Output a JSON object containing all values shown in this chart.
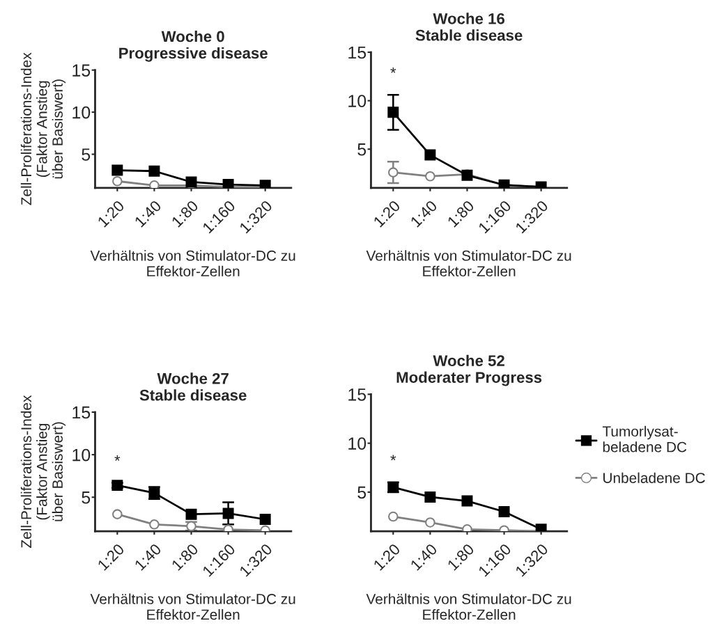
{
  "chart_data": [
    {
      "type": "line",
      "title": "Woche 0\nProgressive disease",
      "xlabel": "Verhältnis von Stimulator-DC zu\nEffektor-Zellen",
      "ylabel": "Zell-Proliferations-Index\n(Faktor Anstieg\nüber Basiswert)",
      "categories": [
        "1:20",
        "1:40",
        "1:80",
        "1:160",
        "1:320"
      ],
      "ylim": [
        1,
        15
      ],
      "yticks": [
        5,
        10,
        15
      ],
      "grid": false,
      "legend": false,
      "series": [
        {
          "color": "#000000",
          "marker": "square",
          "values": [
            3.1,
            3.0,
            1.7,
            1.4,
            1.3
          ]
        },
        {
          "color": "#808080",
          "marker": "circle",
          "values": [
            1.8,
            1.3,
            1.3,
            1.1,
            1.1
          ]
        }
      ]
    },
    {
      "type": "line",
      "title": "Woche 16\nStable disease",
      "xlabel": "Verhältnis von Stimulator-DC zu\nEffektor-Zellen",
      "categories": [
        "1:20",
        "1:40",
        "1:80",
        "1:160",
        "1:320"
      ],
      "ylim": [
        1,
        15
      ],
      "yticks": [
        5,
        10,
        15
      ],
      "grid": false,
      "legend": false,
      "annotations": [
        "*"
      ],
      "series": [
        {
          "color": "#000000",
          "marker": "square",
          "values": [
            8.8,
            4.4,
            2.3,
            1.3,
            1.1
          ],
          "errors": [
            1.8,
            null,
            null,
            null,
            null
          ]
        },
        {
          "color": "#808080",
          "marker": "circle",
          "values": [
            2.6,
            2.2,
            2.4,
            1.3,
            1.1
          ],
          "errors": [
            1.1,
            null,
            null,
            null,
            null
          ]
        }
      ]
    },
    {
      "type": "line",
      "title": "Woche 27\nStable disease",
      "xlabel": "Verhältnis von Stimulator-DC zu\nEffektor-Zellen",
      "ylabel": "Zell-Proliferations-Index\n(Faktor Anstieg\nüber Basiswert)",
      "categories": [
        "1:20",
        "1:40",
        "1:80",
        "1:160",
        "1:320"
      ],
      "ylim": [
        1,
        15
      ],
      "yticks": [
        5,
        10,
        15
      ],
      "grid": false,
      "legend": false,
      "annotations": [
        "*"
      ],
      "series": [
        {
          "color": "#000000",
          "marker": "square",
          "values": [
            6.4,
            5.5,
            3.0,
            3.1,
            2.4
          ],
          "errors": [
            0.3,
            0.7,
            null,
            1.3,
            null
          ]
        },
        {
          "color": "#808080",
          "marker": "circle",
          "values": [
            3.0,
            1.8,
            1.6,
            1.2,
            1.1
          ],
          "errors": [
            null,
            null,
            0.5,
            null,
            null
          ]
        }
      ]
    },
    {
      "type": "line",
      "title": "Woche 52\nModerater Progress",
      "xlabel": "Verhältnis von Stimulator-DC zu\nEffektor-Zellen",
      "categories": [
        "1:20",
        "1:40",
        "1:80",
        "1:160",
        "1:320"
      ],
      "ylim": [
        1,
        15
      ],
      "yticks": [
        5,
        10,
        15
      ],
      "grid": false,
      "legend": "right",
      "annotations": [
        "*"
      ],
      "series": [
        {
          "name": "Tumorlysat-\nbeladene DC",
          "color": "#000000",
          "marker": "square",
          "values": [
            5.5,
            4.5,
            4.1,
            3.0,
            1.2
          ],
          "errors": [
            0.5,
            null,
            null,
            null,
            null
          ]
        },
        {
          "name": "Unbeladene DC",
          "color": "#808080",
          "marker": "circle",
          "values": [
            2.5,
            1.9,
            1.2,
            1.1,
            1.0
          ]
        }
      ]
    }
  ]
}
